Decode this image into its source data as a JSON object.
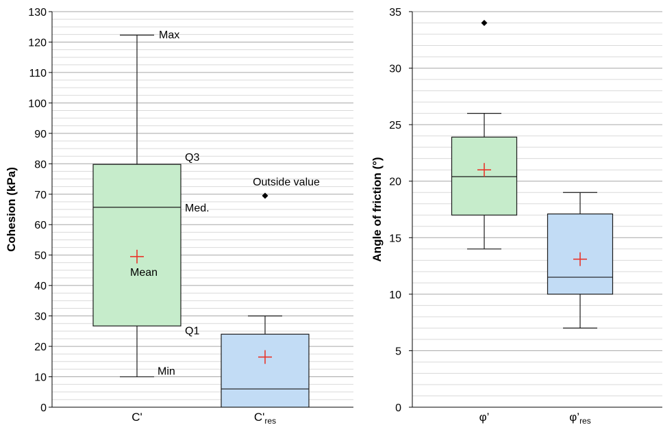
{
  "chart_data": [
    {
      "type": "box",
      "ylabel": "Cohesion (kPa)",
      "ylim": [
        0,
        130
      ],
      "yticks": [
        0,
        10,
        20,
        30,
        40,
        50,
        60,
        70,
        80,
        90,
        100,
        110,
        120,
        130
      ],
      "minor_grid": true,
      "categories": [
        {
          "main": "C'",
          "sub": ""
        },
        {
          "main": "C'",
          "sub": "res"
        }
      ],
      "boxes": [
        {
          "min": 10,
          "q1": 26.7,
          "median": 65.7,
          "q3": 79.8,
          "max": 122.3,
          "mean": 49.5,
          "outliers": [],
          "fill": "#c6eccb"
        },
        {
          "min": 0,
          "q1": 0,
          "median": 6,
          "q3": 24,
          "max": 30,
          "mean": 16.5,
          "outliers": [
            69.5
          ],
          "fill": "#c2dcf5"
        }
      ],
      "annotations": {
        "max": "Max",
        "q3": "Q3",
        "median": "Med.",
        "mean": "Mean",
        "q1": "Q1",
        "min": "Min",
        "outside": "Outside value"
      }
    },
    {
      "type": "box",
      "ylabel": "Angle of friction (°)",
      "ylim": [
        0,
        35
      ],
      "yticks": [
        0,
        5,
        10,
        15,
        20,
        25,
        30,
        35
      ],
      "minor_grid": true,
      "categories": [
        {
          "main": "φ’",
          "sub": ""
        },
        {
          "main": "φ’",
          "sub": "res"
        }
      ],
      "boxes": [
        {
          "min": 14,
          "q1": 17,
          "median": 20.4,
          "q3": 23.9,
          "max": 26,
          "mean": 21,
          "outliers": [
            34
          ],
          "fill": "#c6eccb"
        },
        {
          "min": 7,
          "q1": 10,
          "median": 11.5,
          "q3": 17.1,
          "max": 19,
          "mean": 13.1,
          "outliers": [],
          "fill": "#c2dcf5"
        }
      ]
    }
  ],
  "colors": {
    "mean_marker": "#e8342a",
    "outlier": "#000000",
    "major_grid": "#a6a6a6",
    "minor_grid": "#d9d9d9",
    "box_stroke": "#1a1a1a"
  }
}
